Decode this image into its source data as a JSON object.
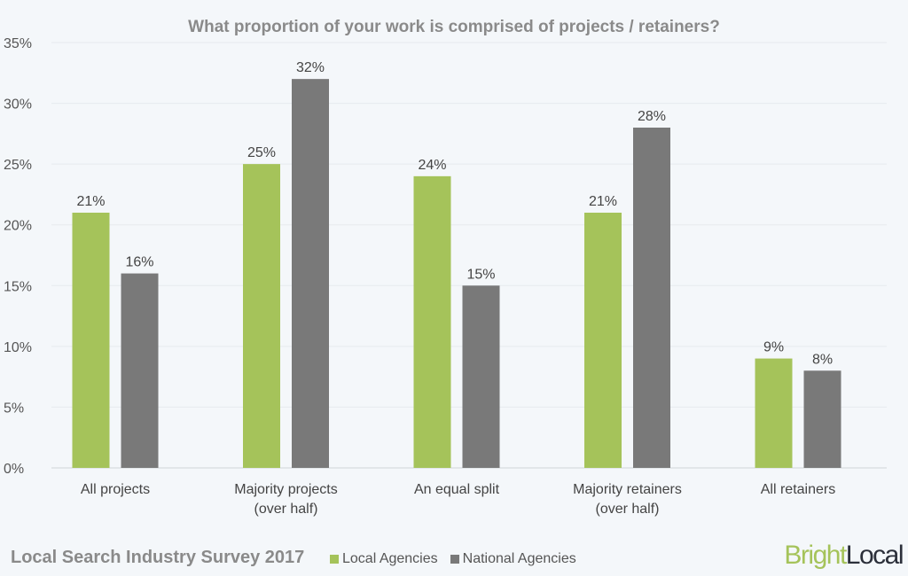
{
  "chart_data": {
    "type": "bar",
    "title": "What proportion of your work is comprised of projects / retainers?",
    "categories": [
      [
        "All projects"
      ],
      [
        "Majority projects",
        "(over half)"
      ],
      [
        "An equal split"
      ],
      [
        "Majority retainers",
        "(over half)"
      ],
      [
        "All retainers"
      ]
    ],
    "series": [
      {
        "name": "Local Agencies",
        "color": "#a5c35a",
        "values": [
          21,
          25,
          24,
          21,
          9
        ]
      },
      {
        "name": "National Agencies",
        "color": "#797979",
        "values": [
          16,
          32,
          15,
          28,
          8
        ]
      }
    ],
    "ylim": [
      0,
      35
    ],
    "yticks": [
      0,
      5,
      10,
      15,
      20,
      25,
      30,
      35
    ],
    "yformat": "%",
    "grid": true,
    "legend": "bottom"
  },
  "footer": {
    "survey_title": "Local Search Industry Survey 2017"
  },
  "logo": {
    "part1": "Bright",
    "part2": "Local",
    "color1": "#a5c35a",
    "color2": "#2b2f3a"
  }
}
